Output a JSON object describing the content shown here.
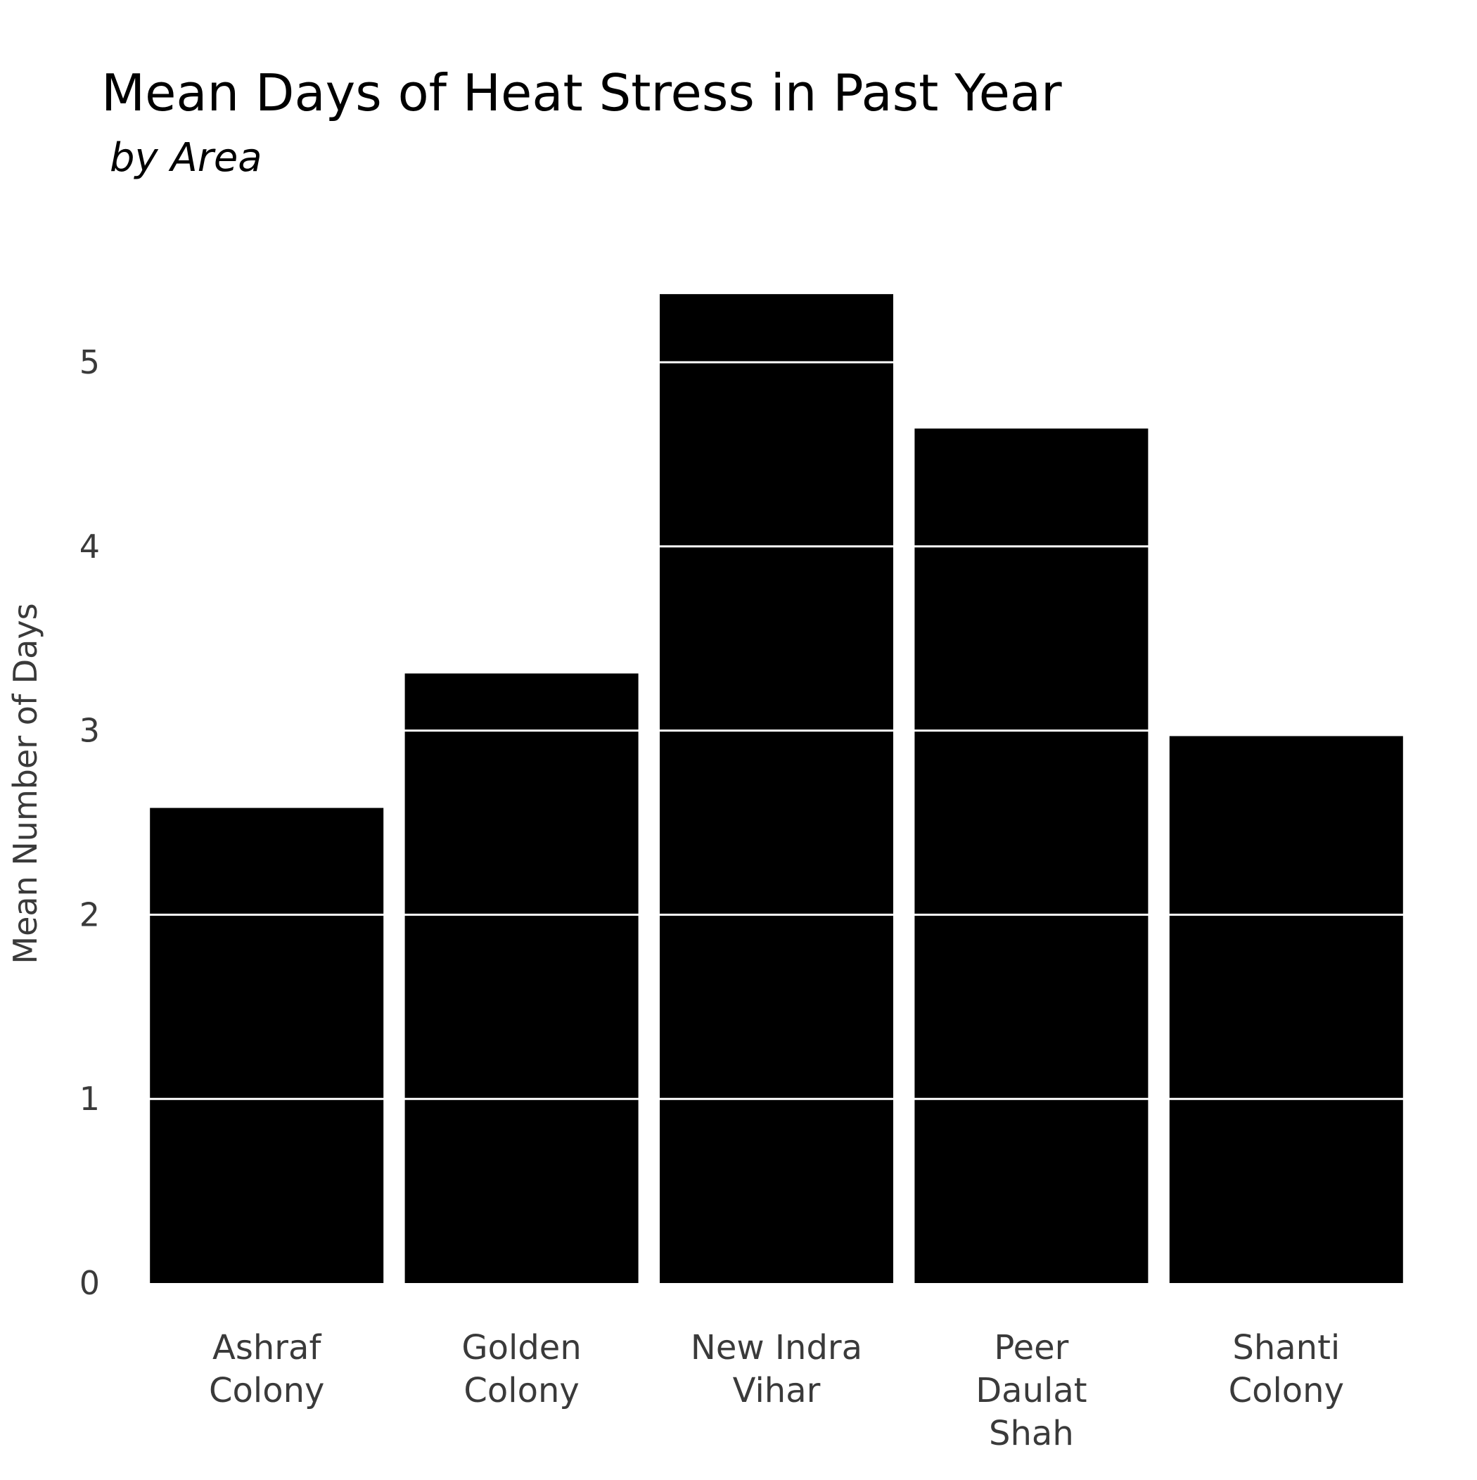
{
  "chart_data": {
    "type": "bar",
    "title": "Mean Days of Heat Stress in Past Year",
    "subtitle": "by Area",
    "xlabel": "",
    "ylabel": "Mean Number of Days",
    "categories": [
      "Ashraf Colony",
      "Golden Colony",
      "New Indra Vihar",
      "Peer Daulat Shah",
      "Shanti Colony"
    ],
    "category_label_lines": [
      [
        "Ashraf",
        "Colony"
      ],
      [
        "Golden",
        "Colony"
      ],
      [
        "New Indra",
        "Vihar"
      ],
      [
        "Peer",
        "Daulat",
        "Shah"
      ],
      [
        "Shanti",
        "Colony"
      ]
    ],
    "values": [
      2.58,
      3.31,
      5.37,
      4.64,
      2.97
    ],
    "ylim": [
      0,
      5.6
    ],
    "yticks": [
      0,
      1,
      2,
      3,
      4,
      5
    ],
    "grid": true,
    "legend": "none",
    "bar_color": "#000000",
    "grid_color": "#ffffff"
  }
}
